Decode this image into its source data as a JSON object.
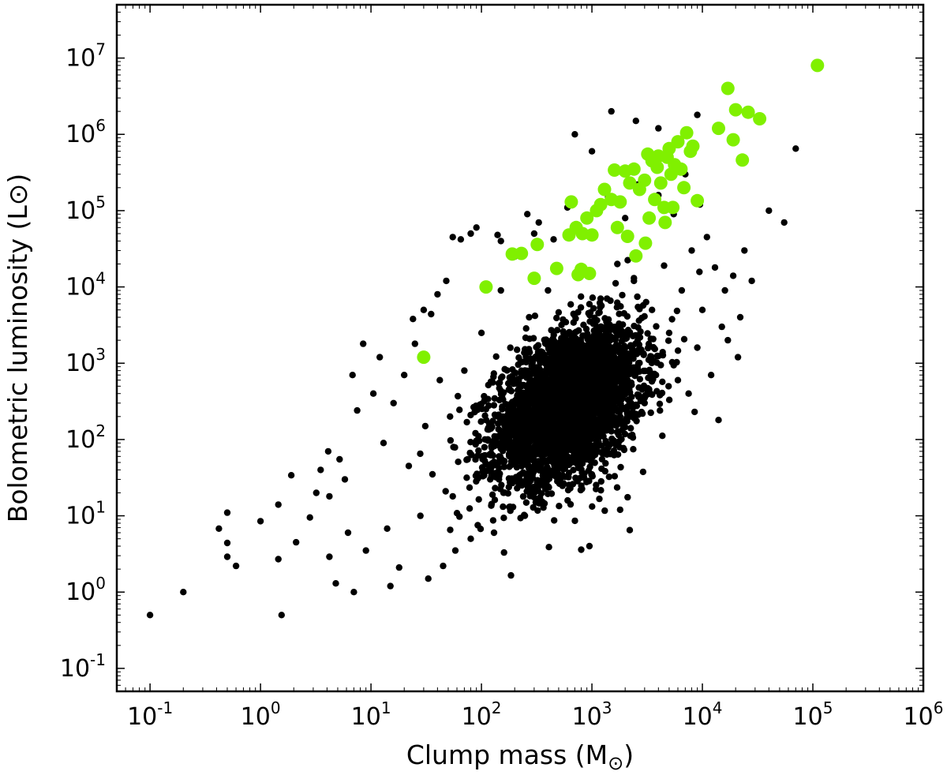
{
  "chart_data": {
    "type": "scatter",
    "title": "",
    "xlabel": "Clump mass (M",
    "xlabel_symbol": "⊙",
    "xlabel_close": ")",
    "ylabel": "Bolometric luminosity (L⊙)",
    "xscale": "log",
    "yscale": "log",
    "xlim": [
      0.05,
      1000000
    ],
    "ylim": [
      0.05,
      50000000
    ],
    "grid": false,
    "legend": "none",
    "x_ticks": [
      {
        "value": 0.1,
        "base": "10",
        "exp": "-1"
      },
      {
        "value": 1,
        "base": "10",
        "exp": "0"
      },
      {
        "value": 10,
        "base": "10",
        "exp": "1"
      },
      {
        "value": 100,
        "base": "10",
        "exp": "2"
      },
      {
        "value": 1000,
        "base": "10",
        "exp": "3"
      },
      {
        "value": 10000,
        "base": "10",
        "exp": "4"
      },
      {
        "value": 100000,
        "base": "10",
        "exp": "5"
      },
      {
        "value": 1000000,
        "base": "10",
        "exp": "6"
      }
    ],
    "y_ticks": [
      {
        "value": 0.1,
        "base": "10",
        "exp": "-1"
      },
      {
        "value": 1,
        "base": "10",
        "exp": "0"
      },
      {
        "value": 10,
        "base": "10",
        "exp": "1"
      },
      {
        "value": 100,
        "base": "10",
        "exp": "2"
      },
      {
        "value": 1000,
        "base": "10",
        "exp": "3"
      },
      {
        "value": 10000,
        "base": "10",
        "exp": "4"
      },
      {
        "value": 100000,
        "base": "10",
        "exp": "5"
      },
      {
        "value": 1000000,
        "base": "10",
        "exp": "6"
      },
      {
        "value": 10000000,
        "base": "10",
        "exp": "7"
      }
    ],
    "series": [
      {
        "color": "#000000",
        "marker_size": "small",
        "points": [
          [
            0.1,
            0.5
          ],
          [
            0.2,
            1.0
          ],
          [
            0.42,
            6.8
          ],
          [
            0.5,
            11
          ],
          [
            0.5,
            4.4
          ],
          [
            0.5,
            2.9
          ],
          [
            0.6,
            2.2
          ],
          [
            1.0,
            8.5
          ],
          [
            1.45,
            14
          ],
          [
            1.45,
            2.7
          ],
          [
            1.55,
            0.5
          ],
          [
            1.9,
            34
          ],
          [
            2.1,
            4.5
          ],
          [
            2.8,
            9.5
          ],
          [
            3.2,
            20
          ],
          [
            3.5,
            40
          ],
          [
            4.1,
            70
          ],
          [
            4.2,
            18
          ],
          [
            4.2,
            2.9
          ],
          [
            4.8,
            1.3
          ],
          [
            5.2,
            55
          ],
          [
            5.8,
            30
          ],
          [
            6.2,
            6.0
          ],
          [
            6.8,
            700
          ],
          [
            7.0,
            1.0
          ],
          [
            7.5,
            240
          ],
          [
            8.5,
            1800
          ],
          [
            9.0,
            3.5
          ],
          [
            10.5,
            400
          ],
          [
            12,
            1200
          ],
          [
            13,
            90
          ],
          [
            14,
            6.8
          ],
          [
            15,
            1.2
          ],
          [
            16,
            300
          ],
          [
            18,
            2.1
          ],
          [
            20,
            700
          ],
          [
            22,
            45
          ],
          [
            24,
            3800
          ],
          [
            25,
            1800
          ],
          [
            28,
            10
          ],
          [
            30,
            5000
          ],
          [
            31,
            150
          ],
          [
            33,
            1.5
          ],
          [
            35,
            4400
          ],
          [
            36,
            35
          ],
          [
            40,
            8000
          ],
          [
            42,
            600
          ],
          [
            45,
            2.2
          ],
          [
            48,
            12000
          ],
          [
            52,
            200
          ],
          [
            55,
            18
          ],
          [
            58,
            3.5
          ],
          [
            65,
            42000
          ],
          [
            70,
            800
          ],
          [
            75,
            55
          ],
          [
            80,
            5
          ],
          [
            90,
            60000
          ],
          [
            100,
            2500
          ],
          [
            110,
            250
          ],
          [
            120,
            30
          ],
          [
            130,
            6
          ],
          [
            140,
            48000
          ],
          [
            150,
            9000
          ],
          [
            160,
            3.3
          ],
          [
            170,
            120
          ],
          [
            180,
            650
          ],
          [
            200,
            25000
          ],
          [
            210,
            1500
          ],
          [
            230,
            55
          ],
          [
            260,
            90000
          ],
          [
            270,
            4000
          ],
          [
            300,
            300
          ],
          [
            310,
            15
          ],
          [
            330,
            70000
          ],
          [
            350,
            1100
          ],
          [
            380,
            180
          ],
          [
            400,
            9000
          ],
          [
            450,
            42000
          ],
          [
            480,
            380
          ],
          [
            500,
            35
          ],
          [
            550,
            2600
          ],
          [
            600,
            110000
          ],
          [
            650,
            700
          ],
          [
            700,
            60
          ],
          [
            750,
            15000
          ],
          [
            800,
            3.6
          ],
          [
            850,
            1600
          ],
          [
            900,
            200
          ],
          [
            950,
            4.0
          ],
          [
            1000,
            45000
          ],
          [
            1100,
            900
          ],
          [
            1200,
            7000
          ],
          [
            1300,
            130
          ],
          [
            1400,
            150000
          ],
          [
            1500,
            2200
          ],
          [
            1600,
            400
          ],
          [
            1700,
            20000
          ],
          [
            1800,
            12
          ],
          [
            2000,
            80000
          ],
          [
            2100,
            600
          ],
          [
            2200,
            6.5
          ],
          [
            2400,
            12000
          ],
          [
            2600,
            220000
          ],
          [
            2800,
            1500
          ],
          [
            3000,
            300
          ],
          [
            3200,
            40000
          ],
          [
            3500,
            5000
          ],
          [
            3800,
            700
          ],
          [
            4000,
            160000
          ],
          [
            4500,
            19000
          ],
          [
            5000,
            2500
          ],
          [
            5500,
            90000
          ],
          [
            6000,
            600
          ],
          [
            6500,
            9000
          ],
          [
            7000,
            300000
          ],
          [
            7500,
            400
          ],
          [
            8000,
            30000
          ],
          [
            8500,
            230
          ],
          [
            9000,
            1600
          ],
          [
            9500,
            120000
          ],
          [
            10000,
            5000
          ],
          [
            11000,
            45000
          ],
          [
            12000,
            700
          ],
          [
            13000,
            18000
          ],
          [
            14000,
            180
          ],
          [
            15000,
            3000
          ],
          [
            16000,
            9000
          ],
          [
            17000,
            2000
          ],
          [
            19000,
            14000
          ],
          [
            21000,
            1200
          ],
          [
            22000,
            4000
          ],
          [
            24000,
            30000
          ],
          [
            28000,
            12000
          ],
          [
            40000,
            100000
          ],
          [
            55000,
            70000
          ],
          [
            70000,
            650000
          ],
          [
            1500,
            2000000
          ],
          [
            2500,
            1500000
          ],
          [
            4000,
            1200000
          ],
          [
            7000,
            1000000
          ],
          [
            9000,
            1800000
          ],
          [
            700,
            1000000
          ],
          [
            1000,
            600000
          ],
          [
            300,
            50000
          ],
          [
            150,
            40000
          ],
          [
            80,
            50000
          ],
          [
            55,
            45000
          ]
        ],
        "cloud": {
          "center": [
            600,
            280
          ],
          "n": 3600,
          "log_sigma_x": 0.33,
          "log_sigma_y": 0.5,
          "correlation": 0.42
        }
      },
      {
        "color": "#80f000",
        "marker_size": "large",
        "points": [
          [
            30,
            1200
          ],
          [
            110,
            10000
          ],
          [
            190,
            27000
          ],
          [
            230,
            27500
          ],
          [
            300,
            13000
          ],
          [
            320,
            36000
          ],
          [
            480,
            17500
          ],
          [
            620,
            48000
          ],
          [
            650,
            130000
          ],
          [
            720,
            60000
          ],
          [
            750,
            14500
          ],
          [
            800,
            17000
          ],
          [
            820,
            50000
          ],
          [
            900,
            80000
          ],
          [
            950,
            15000
          ],
          [
            1000,
            48000
          ],
          [
            1100,
            100000
          ],
          [
            1200,
            120000
          ],
          [
            1300,
            190000
          ],
          [
            1500,
            140000
          ],
          [
            1600,
            340000
          ],
          [
            1700,
            60000
          ],
          [
            1800,
            130000
          ],
          [
            2000,
            330000
          ],
          [
            2100,
            46000
          ],
          [
            2200,
            230000
          ],
          [
            2400,
            350000
          ],
          [
            2500,
            25500
          ],
          [
            2700,
            190000
          ],
          [
            3000,
            250000
          ],
          [
            3050,
            37500
          ],
          [
            3200,
            550000
          ],
          [
            3300,
            80000
          ],
          [
            3500,
            450000
          ],
          [
            3700,
            140000
          ],
          [
            3900,
            370000
          ],
          [
            4000,
            520000
          ],
          [
            4200,
            230000
          ],
          [
            4500,
            110000
          ],
          [
            4600,
            70000
          ],
          [
            4800,
            500000
          ],
          [
            5000,
            650000
          ],
          [
            5200,
            300000
          ],
          [
            5400,
            110000
          ],
          [
            5600,
            400000
          ],
          [
            6000,
            800000
          ],
          [
            6400,
            350000
          ],
          [
            6800,
            200000
          ],
          [
            7200,
            1050000
          ],
          [
            7800,
            600000
          ],
          [
            8200,
            700000
          ],
          [
            9000,
            135000
          ],
          [
            14000,
            1200000
          ],
          [
            17000,
            4000000
          ],
          [
            19000,
            850000
          ],
          [
            20000,
            2100000
          ],
          [
            23000,
            460000
          ],
          [
            26000,
            1950000
          ],
          [
            33000,
            1600000
          ],
          [
            110000,
            8000000
          ]
        ]
      }
    ]
  }
}
